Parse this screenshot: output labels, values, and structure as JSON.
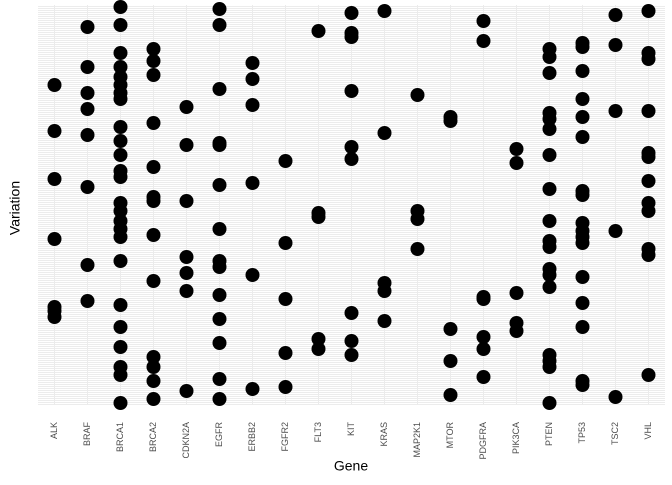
{
  "chart_data": {
    "type": "strip",
    "x_label": "Gene",
    "y_label": "Variation",
    "categories": [
      "ALK",
      "BRAF",
      "BRCA1",
      "BRCA2",
      "CDKN2A",
      "EGFR",
      "ERBB2",
      "FGFR2",
      "FLT3",
      "KIT",
      "KRAS",
      "MAP2K1",
      "MTOR",
      "PDGFRA",
      "PIK3CA",
      "PTEN",
      "TP53",
      "TSC2",
      "VHL"
    ],
    "values": [
      [
        160,
        137,
        113,
        83,
        49,
        47,
        44
      ],
      [
        189,
        169,
        156,
        148,
        135,
        109,
        70,
        52
      ],
      [
        199,
        190,
        176,
        169,
        164,
        160,
        156,
        153,
        139,
        132,
        125,
        117,
        114,
        101,
        97,
        92,
        88,
        84,
        72,
        50,
        39,
        29,
        19,
        15,
        1
      ],
      [
        178,
        172,
        165,
        141,
        119,
        104,
        102,
        85,
        62,
        24,
        19,
        12,
        3
      ],
      [
        149,
        130,
        102,
        74,
        66,
        57,
        7
      ],
      [
        198,
        190,
        158,
        131,
        130,
        110,
        88,
        72,
        69,
        55,
        43,
        31,
        13,
        3
      ],
      [
        171,
        163,
        150,
        111,
        65,
        8
      ],
      [
        122,
        81,
        53,
        26,
        9
      ],
      [
        187,
        96,
        94,
        33,
        28
      ],
      [
        196,
        186,
        184,
        157,
        129,
        123,
        46,
        32,
        25
      ],
      [
        197,
        136,
        61,
        57,
        42
      ],
      [
        155,
        97,
        93,
        78
      ],
      [
        144,
        142,
        38,
        22,
        5
      ],
      [
        192,
        182,
        54,
        53,
        34,
        28,
        14
      ],
      [
        128,
        121,
        56,
        41,
        37
      ],
      [
        178,
        174,
        166,
        146,
        143,
        138,
        125,
        108,
        92,
        82,
        79,
        68,
        65,
        59,
        25,
        22,
        19,
        1
      ],
      [
        181,
        179,
        167,
        153,
        144,
        134,
        107,
        105,
        91,
        87,
        84,
        81,
        64,
        51,
        39,
        12,
        10
      ],
      [
        195,
        180,
        147,
        87,
        4
      ],
      [
        197,
        176,
        173,
        147,
        126,
        124,
        112,
        101,
        97,
        78,
        75,
        15
      ]
    ],
    "color": "#000000",
    "ylim": [
      0,
      200
    ],
    "grid": true
  }
}
